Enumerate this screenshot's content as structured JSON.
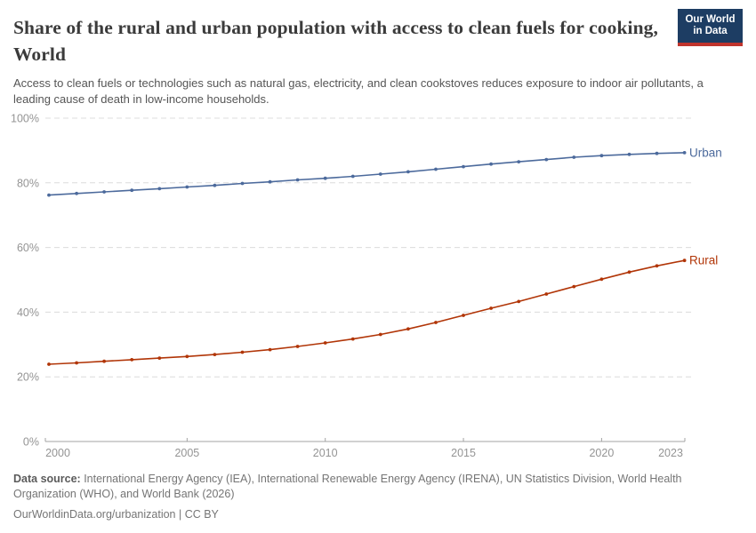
{
  "header": {
    "title": "Share of the rural and urban population with access to clean fuels for cooking, World",
    "subtitle": "Access to clean fuels or technologies such as natural gas, electricity, and clean cookstoves reduces exposure to indoor air pollutants, a leading cause of death in low-income households.",
    "logo": {
      "line1": "Our World",
      "line2": "in Data"
    }
  },
  "chart_data": {
    "type": "line",
    "title": "Share of the rural and urban population with access to clean fuels for cooking, World",
    "x": [
      2000,
      2001,
      2002,
      2003,
      2004,
      2005,
      2006,
      2007,
      2008,
      2009,
      2010,
      2011,
      2012,
      2013,
      2014,
      2015,
      2016,
      2017,
      2018,
      2019,
      2020,
      2021,
      2022,
      2023
    ],
    "series": [
      {
        "name": "Urban",
        "color": "#4C6A9C",
        "values": [
          76.2,
          76.7,
          77.2,
          77.7,
          78.2,
          78.7,
          79.2,
          79.8,
          80.3,
          80.9,
          81.4,
          82.0,
          82.7,
          83.4,
          84.2,
          85.0,
          85.8,
          86.5,
          87.2,
          87.9,
          88.4,
          88.8,
          89.1,
          89.3
        ]
      },
      {
        "name": "Rural",
        "color": "#B13507",
        "values": [
          23.9,
          24.3,
          24.8,
          25.3,
          25.8,
          26.3,
          26.9,
          27.6,
          28.4,
          29.4,
          30.5,
          31.7,
          33.1,
          34.8,
          36.8,
          39.0,
          41.2,
          43.3,
          45.6,
          47.9,
          50.2,
          52.4,
          54.3,
          56.0
        ]
      }
    ],
    "ylim": [
      0,
      100
    ],
    "yticks": [
      0,
      20,
      40,
      60,
      80,
      100
    ],
    "ytick_suffix": "%",
    "xticks": [
      2000,
      2005,
      2010,
      2015,
      2020,
      2023
    ],
    "grid": "horizontal-dashed",
    "legend": "line-end-labels"
  },
  "footer": {
    "source_label": "Data source:",
    "source_text": " International Energy Agency (IEA), International Renewable Energy Agency (IRENA), UN Statistics Division, World Health Organization (WHO), and World Bank (2026)",
    "license_text": "OurWorldinData.org/urbanization | CC BY"
  },
  "colors": {
    "urban_line": "#4C6A9C",
    "rural_line": "#B13507",
    "logo_bg": "#1d3d63",
    "logo_accent": "#c0342d",
    "grid": "#dcdcdc",
    "axis": "#a3a3a3",
    "tick_label": "#949494",
    "title_text": "#3b3b3b",
    "subtitle_text": "#555555",
    "footer_text": "#757575"
  }
}
